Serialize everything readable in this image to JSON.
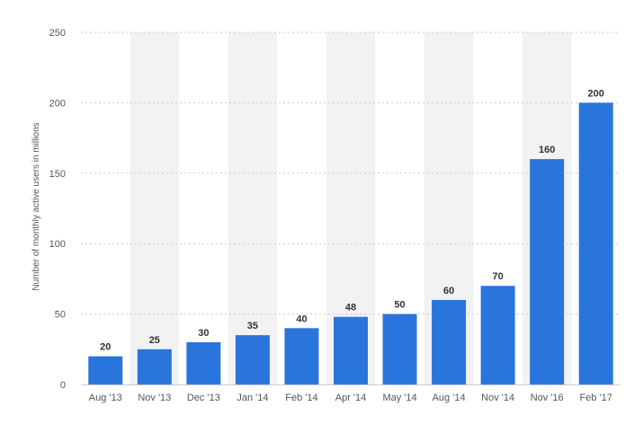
{
  "chart_data": {
    "type": "bar",
    "title": "",
    "xlabel": "",
    "ylabel": "Number of monthly active users in millions",
    "categories": [
      "Aug '13",
      "Nov '13",
      "Dec '13",
      "Jan '14",
      "Feb '14",
      "Apr '14",
      "May '14",
      "Aug '14",
      "Nov '14",
      "Nov '16",
      "Feb '17"
    ],
    "values": [
      20,
      25,
      30,
      35,
      40,
      48,
      50,
      60,
      70,
      160,
      200
    ],
    "data_labels": [
      "20",
      "25",
      "30",
      "35",
      "40",
      "48",
      "50",
      "60",
      "70",
      "160",
      "200"
    ],
    "ylim": [
      0,
      250
    ],
    "yticks": [
      "0",
      "50",
      "100",
      "150",
      "200",
      "250"
    ],
    "grid": true,
    "legend": "none",
    "colors": {
      "bar": "#2a75dc",
      "band": "#f2f2f2",
      "grid": "#c8c8c8"
    }
  }
}
